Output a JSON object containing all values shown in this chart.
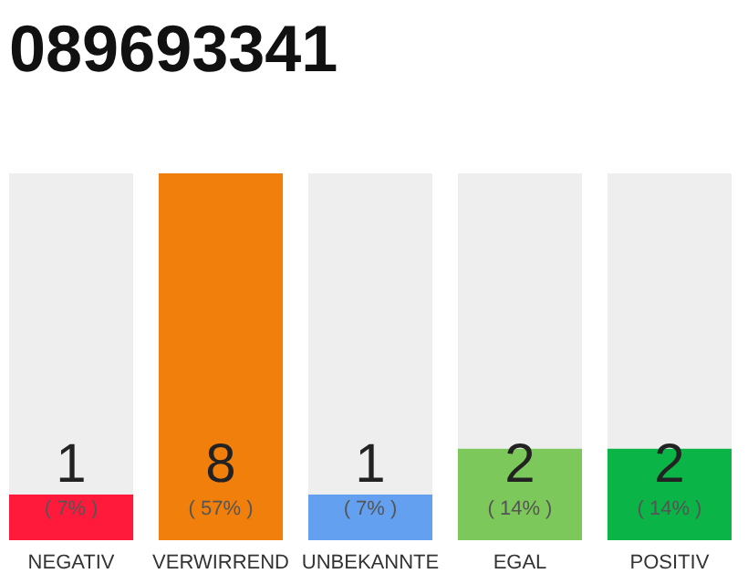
{
  "chart_data": {
    "type": "bar",
    "title": "089693341",
    "categories": [
      "NEGATIV",
      "VERWIRREND",
      "UNBEKANNTE",
      "EGAL",
      "POSITIV"
    ],
    "series": [
      {
        "colors": [
          "#ff1a3c",
          "#f07f0c",
          "#64a0f0",
          "#7dc85a",
          "#0ab446"
        ],
        "values": [
          1,
          8,
          1,
          2,
          2
        ],
        "value_labels": [
          "1",
          "8",
          "1",
          "2",
          "2"
        ]
      },
      {
        "color": "#eeeeee",
        "values": [
          7,
          0,
          7,
          6,
          6
        ]
      }
    ],
    "stacked": true,
    "tick_labels": "x",
    "annotations": [
      "( 7% )",
      "( 57% )",
      "( 7% )",
      "( 14% )",
      "( 14% )"
    ]
  }
}
